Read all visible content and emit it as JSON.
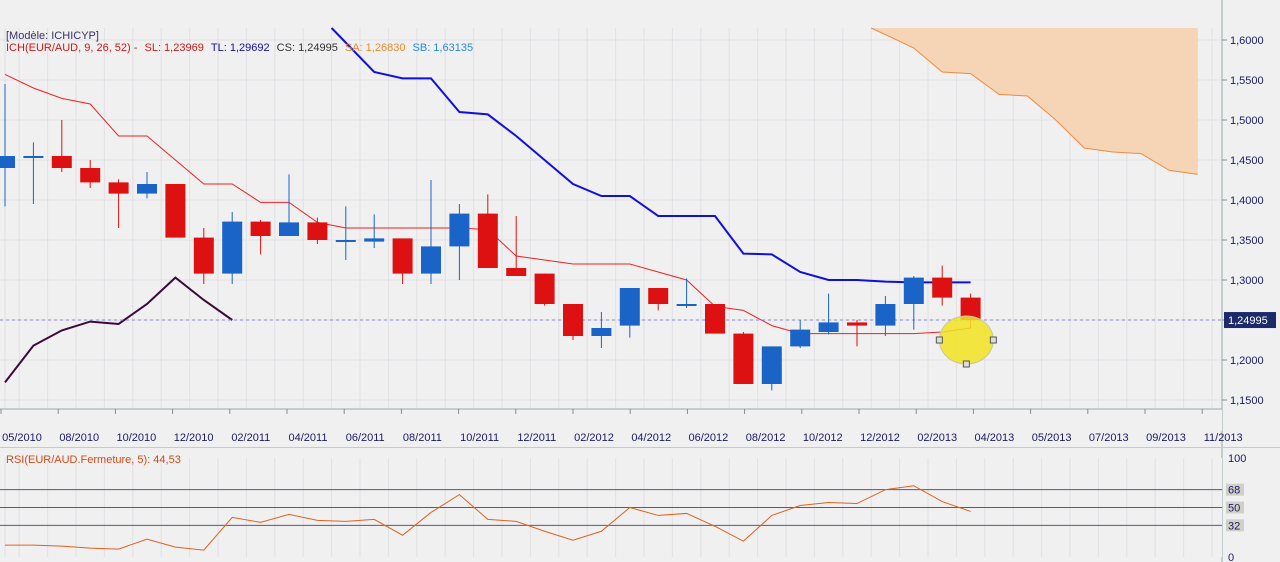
{
  "legend": {
    "model": "[Modèle: ICHICYP]",
    "ich": "ICH(EUR/AUD, 9, 26, 52) -",
    "sl": "SL: 1,23969",
    "tl": "TL: 1,29692",
    "cs": "CS: 1,24995",
    "sa": "SA: 1,26830",
    "sb": "SB: 1,63135",
    "rsi": "RSI(EUR/AUD.Fermeture, 5): 44,53"
  },
  "price_marker": "1,24995",
  "colors": {
    "bull": "#1a64c8",
    "bear": "#dd1111",
    "kijun_sl": "#ee2222",
    "tenkan_tl": "#1010dd",
    "chikou_cs": "#3a0a3a",
    "kumo": "#f5d5b5",
    "rsi_line": "#e06020"
  },
  "chart_data": [
    {
      "type": "candlestick",
      "title": "ICH(EUR/AUD, 9, 26, 52)",
      "ylim": [
        1.14,
        1.615
      ],
      "yticks": [
        "1,6000",
        "1,5500",
        "1,5000",
        "1,4500",
        "1,4000",
        "1,3500",
        "1,3000",
        "1,2500",
        "1,2000",
        "1,1500"
      ],
      "ytick_values": [
        1.6,
        1.55,
        1.5,
        1.45,
        1.4,
        1.35,
        1.3,
        1.25,
        1.2,
        1.15
      ],
      "xticks": [
        "05/2010",
        "08/2010",
        "10/2010",
        "12/2010",
        "02/2011",
        "04/2011",
        "06/2011",
        "08/2011",
        "10/2011",
        "12/2011",
        "02/2012",
        "04/2012",
        "06/2012",
        "08/2012",
        "10/2012",
        "12/2012",
        "02/2013",
        "04/2013",
        "05/2013",
        "07/2013",
        "09/2013",
        "11/2013"
      ],
      "candles": [
        {
          "o": 1.44,
          "h": 1.545,
          "l": 1.392,
          "c": 1.455
        },
        {
          "o": 1.455,
          "h": 1.472,
          "l": 1.395,
          "c": 1.455
        },
        {
          "o": 1.455,
          "h": 1.5,
          "l": 1.435,
          "c": 1.44
        },
        {
          "o": 1.44,
          "h": 1.45,
          "l": 1.415,
          "c": 1.422
        },
        {
          "o": 1.422,
          "h": 1.426,
          "l": 1.365,
          "c": 1.408
        },
        {
          "o": 1.408,
          "h": 1.435,
          "l": 1.402,
          "c": 1.42
        },
        {
          "o": 1.42,
          "h": 1.42,
          "l": 1.353,
          "c": 1.353
        },
        {
          "o": 1.353,
          "h": 1.365,
          "l": 1.295,
          "c": 1.308
        },
        {
          "o": 1.308,
          "h": 1.385,
          "l": 1.295,
          "c": 1.373
        },
        {
          "o": 1.373,
          "h": 1.375,
          "l": 1.332,
          "c": 1.355
        },
        {
          "o": 1.355,
          "h": 1.432,
          "l": 1.355,
          "c": 1.372
        },
        {
          "o": 1.372,
          "h": 1.378,
          "l": 1.345,
          "c": 1.35
        },
        {
          "o": 1.35,
          "h": 1.392,
          "l": 1.325,
          "c": 1.35
        },
        {
          "o": 1.348,
          "h": 1.382,
          "l": 1.34,
          "c": 1.352
        },
        {
          "o": 1.352,
          "h": 1.352,
          "l": 1.295,
          "c": 1.308
        },
        {
          "o": 1.308,
          "h": 1.425,
          "l": 1.295,
          "c": 1.342
        },
        {
          "o": 1.342,
          "h": 1.395,
          "l": 1.3,
          "c": 1.383
        },
        {
          "o": 1.383,
          "h": 1.407,
          "l": 1.315,
          "c": 1.315
        },
        {
          "o": 1.315,
          "h": 1.38,
          "l": 1.305,
          "c": 1.305
        },
        {
          "o": 1.308,
          "h": 1.308,
          "l": 1.268,
          "c": 1.27
        },
        {
          "o": 1.27,
          "h": 1.27,
          "l": 1.225,
          "c": 1.23
        },
        {
          "o": 1.23,
          "h": 1.26,
          "l": 1.215,
          "c": 1.24
        },
        {
          "o": 1.243,
          "h": 1.29,
          "l": 1.228,
          "c": 1.29
        },
        {
          "o": 1.29,
          "h": 1.29,
          "l": 1.262,
          "c": 1.27
        },
        {
          "o": 1.27,
          "h": 1.302,
          "l": 1.265,
          "c": 1.27
        },
        {
          "o": 1.27,
          "h": 1.27,
          "l": 1.233,
          "c": 1.233
        },
        {
          "o": 1.233,
          "h": 1.235,
          "l": 1.17,
          "c": 1.17
        },
        {
          "o": 1.17,
          "h": 1.217,
          "l": 1.162,
          "c": 1.217
        },
        {
          "o": 1.217,
          "h": 1.25,
          "l": 1.215,
          "c": 1.238
        },
        {
          "o": 1.235,
          "h": 1.283,
          "l": 1.232,
          "c": 1.247
        },
        {
          "o": 1.247,
          "h": 1.25,
          "l": 1.217,
          "c": 1.243
        },
        {
          "o": 1.243,
          "h": 1.28,
          "l": 1.23,
          "c": 1.27
        },
        {
          "o": 1.27,
          "h": 1.305,
          "l": 1.238,
          "c": 1.303
        },
        {
          "o": 1.303,
          "h": 1.318,
          "l": 1.268,
          "c": 1.278
        },
        {
          "o": 1.278,
          "h": 1.283,
          "l": 1.24,
          "c": 1.25
        }
      ],
      "tenkan_tl": [
        [
          11.5,
          1.615
        ],
        [
          13,
          1.56
        ],
        [
          14,
          1.552
        ],
        [
          15,
          1.552
        ],
        [
          16,
          1.51
        ],
        [
          17,
          1.507
        ],
        [
          18,
          1.48
        ],
        [
          19,
          1.45
        ],
        [
          20,
          1.42
        ],
        [
          21,
          1.405
        ],
        [
          22,
          1.405
        ],
        [
          23,
          1.38
        ],
        [
          24,
          1.38
        ],
        [
          25,
          1.38
        ],
        [
          26,
          1.333
        ],
        [
          27,
          1.332
        ],
        [
          28,
          1.31
        ],
        [
          29,
          1.3
        ],
        [
          30,
          1.3
        ],
        [
          31,
          1.298
        ],
        [
          32,
          1.297
        ],
        [
          33,
          1.297
        ],
        [
          34,
          1.297
        ]
      ],
      "kijun_sl": [
        [
          0,
          1.557
        ],
        [
          1,
          1.54
        ],
        [
          2,
          1.527
        ],
        [
          3,
          1.52
        ],
        [
          4,
          1.48
        ],
        [
          5,
          1.48
        ],
        [
          6,
          1.45
        ],
        [
          7,
          1.42
        ],
        [
          8,
          1.42
        ],
        [
          9,
          1.397
        ],
        [
          10,
          1.397
        ],
        [
          11,
          1.372
        ],
        [
          12,
          1.365
        ],
        [
          13,
          1.365
        ],
        [
          14,
          1.365
        ],
        [
          15,
          1.365
        ],
        [
          16,
          1.365
        ],
        [
          17,
          1.363
        ],
        [
          18,
          1.33
        ],
        [
          19,
          1.325
        ],
        [
          20,
          1.32
        ],
        [
          21,
          1.32
        ],
        [
          22,
          1.32
        ],
        [
          23,
          1.31
        ],
        [
          24,
          1.3
        ],
        [
          25,
          1.267
        ],
        [
          26,
          1.262
        ],
        [
          27,
          1.243
        ],
        [
          28,
          1.233
        ],
        [
          29,
          1.233
        ],
        [
          30,
          1.233
        ],
        [
          31,
          1.233
        ],
        [
          32,
          1.233
        ],
        [
          33,
          1.235
        ],
        [
          34,
          1.24
        ]
      ],
      "chikou_cs": [
        [
          0,
          1.172
        ],
        [
          1,
          1.218
        ],
        [
          2,
          1.237
        ],
        [
          3,
          1.248
        ],
        [
          4,
          1.245
        ],
        [
          5,
          1.27
        ],
        [
          6,
          1.303
        ],
        [
          7,
          1.275
        ],
        [
          8,
          1.25
        ]
      ],
      "senkou_a": [
        [
          30.5,
          1.615
        ],
        [
          32,
          1.59
        ],
        [
          33,
          1.56
        ],
        [
          34,
          1.558
        ],
        [
          35,
          1.532
        ],
        [
          36,
          1.53
        ],
        [
          37,
          1.5
        ],
        [
          38,
          1.465
        ],
        [
          39,
          1.46
        ],
        [
          40,
          1.458
        ],
        [
          41,
          1.437
        ],
        [
          42,
          1.432
        ]
      ],
      "senkou_b": [
        [
          30.5,
          1.615
        ],
        [
          42,
          1.615
        ]
      ],
      "current_price": 1.24995
    },
    {
      "type": "line",
      "title": "RSI(EUR/AUD.Fermeture, 5): 44,53",
      "ylim": [
        0,
        100
      ],
      "yticks": [
        "100",
        "68",
        "50",
        "32",
        "0"
      ],
      "ytick_values": [
        100,
        68,
        50,
        32,
        0
      ],
      "levels": [
        68,
        50,
        32
      ],
      "series": [
        {
          "name": "RSI(EUR/AUD.Fermeture, 5)",
          "values": [
            [
              0,
              12
            ],
            [
              1,
              12
            ],
            [
              2,
              11
            ],
            [
              3,
              9
            ],
            [
              4,
              8
            ],
            [
              5,
              18
            ],
            [
              6,
              10
            ],
            [
              7,
              7
            ],
            [
              8,
              40
            ],
            [
              9,
              35
            ],
            [
              10,
              43
            ],
            [
              11,
              37
            ],
            [
              12,
              36
            ],
            [
              13,
              38
            ],
            [
              14,
              22
            ],
            [
              15,
              45
            ],
            [
              16,
              63
            ],
            [
              17,
              38
            ],
            [
              18,
              36
            ],
            [
              19,
              26
            ],
            [
              20,
              17
            ],
            [
              21,
              26
            ],
            [
              22,
              50
            ],
            [
              23,
              42
            ],
            [
              24,
              44
            ],
            [
              25,
              31
            ],
            [
              26,
              16
            ],
            [
              27,
              42
            ],
            [
              28,
              52
            ],
            [
              29,
              55
            ],
            [
              30,
              54
            ],
            [
              31,
              68
            ],
            [
              32,
              72
            ],
            [
              33,
              56
            ],
            [
              34,
              46
            ]
          ]
        }
      ]
    }
  ]
}
